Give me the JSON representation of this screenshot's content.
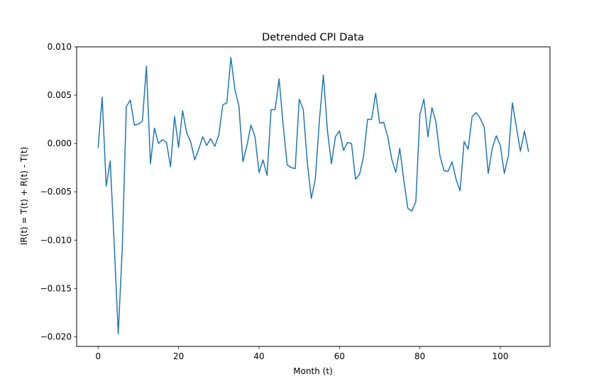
{
  "chart_data": {
    "type": "line",
    "title": "Detrended CPI Data",
    "xlabel": "Month (t)",
    "ylabel": "IR(t) = T(t) + R(t) - T(t)",
    "xlim": [
      -5.35,
      112.35
    ],
    "ylim": [
      -0.021,
      0.01
    ],
    "xticks": [
      0,
      20,
      40,
      60,
      80,
      100
    ],
    "xtick_labels": [
      "0",
      "20",
      "40",
      "60",
      "80",
      "100"
    ],
    "yticks": [
      0.01,
      0.005,
      0.0,
      -0.005,
      -0.01,
      -0.015,
      -0.02
    ],
    "ytick_labels": [
      "0.010",
      "0.005",
      "0.000",
      "−0.005",
      "−0.010",
      "−0.015",
      "−0.020"
    ],
    "grid": false,
    "series": [
      {
        "color": "#1f77b4",
        "x": [
          0,
          1,
          2,
          3,
          4,
          5,
          6,
          7,
          8,
          9,
          10,
          11,
          12,
          13,
          14,
          15,
          16,
          17,
          18,
          19,
          20,
          21,
          22,
          23,
          24,
          25,
          26,
          27,
          28,
          29,
          30,
          31,
          32,
          33,
          34,
          35,
          36,
          37,
          38,
          39,
          40,
          41,
          42,
          43,
          44,
          45,
          46,
          47,
          48,
          49,
          50,
          51,
          52,
          53,
          54,
          55,
          56,
          57,
          58,
          59,
          60,
          61,
          62,
          63,
          64,
          65,
          66,
          67,
          68,
          69,
          70,
          71,
          72,
          73,
          74,
          75,
          76,
          77,
          78,
          79,
          80,
          81,
          82,
          83,
          84,
          85,
          86,
          87,
          88,
          89,
          90,
          91,
          92,
          93,
          94,
          95,
          96,
          97,
          98,
          99,
          100,
          101,
          102,
          103,
          104,
          105,
          106,
          107
        ],
        "y": [
          -0.0004,
          0.0048,
          -0.0044,
          -0.0018,
          -0.0105,
          -0.0197,
          -0.0108,
          0.0038,
          0.0045,
          0.0019,
          0.002,
          0.0023,
          0.008,
          -0.0021,
          0.0016,
          0.0,
          0.0004,
          0.0001,
          -0.0024,
          0.0028,
          -0.0004,
          0.0034,
          0.0011,
          0.0002,
          -0.0017,
          -0.0006,
          0.0007,
          -0.0002,
          0.0005,
          -0.0003,
          0.0009,
          0.004,
          0.0042,
          0.0089,
          0.0056,
          0.0039,
          -0.0019,
          -0.0002,
          0.0019,
          0.0007,
          -0.003,
          -0.0017,
          -0.0033,
          0.0035,
          0.0035,
          0.0067,
          0.0019,
          -0.0022,
          -0.0025,
          -0.0026,
          0.0046,
          0.0035,
          -0.0019,
          -0.0057,
          -0.0037,
          0.0023,
          0.0071,
          0.0014,
          -0.0021,
          0.0007,
          0.0013,
          -0.0007,
          0.0001,
          0.0,
          -0.0037,
          -0.0032,
          -0.0013,
          0.0025,
          0.0025,
          0.0052,
          0.0021,
          0.0022,
          0.0007,
          -0.0016,
          -0.003,
          -0.0005,
          -0.0038,
          -0.0067,
          -0.007,
          -0.006,
          0.003,
          0.0046,
          0.0007,
          0.0037,
          0.0022,
          -0.0013,
          -0.0028,
          -0.0029,
          -0.0019,
          -0.0037,
          -0.0049,
          0.0002,
          -0.0006,
          0.0028,
          0.0032,
          0.0026,
          0.0017,
          -0.0031,
          -0.0005,
          0.0008,
          -0.0002,
          -0.0031,
          -0.0013,
          0.0042,
          0.0017,
          -0.0008,
          0.0013,
          -0.0008
        ]
      }
    ]
  }
}
